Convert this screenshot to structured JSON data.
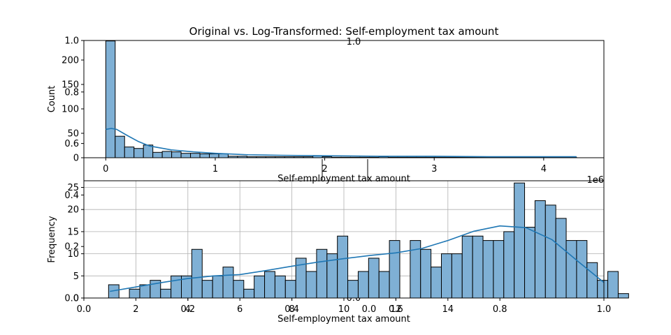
{
  "chart_data": [
    {
      "type": "bar",
      "title": "Original vs. Log-Transformed: Self-employment tax amount",
      "xlabel": "Self-employment tax amount",
      "ylabel": "Count",
      "x_offset_label": "1e6",
      "xlim": [
        -200000,
        4550000
      ],
      "ylim": [
        0,
        240
      ],
      "xticks": [
        0,
        1,
        2,
        3,
        4
      ],
      "yticks": [
        0,
        50,
        100,
        150,
        200
      ],
      "grid": false,
      "bin_start": 0,
      "bin_width": 86000,
      "counts": [
        239,
        44,
        22,
        19,
        26,
        11,
        13,
        12,
        9,
        9,
        8,
        8,
        8,
        3,
        3,
        2,
        2,
        2,
        2,
        2,
        2,
        2,
        4,
        2,
        1,
        1,
        1,
        1,
        1,
        2,
        1,
        1,
        1,
        1,
        1,
        1,
        1,
        1,
        1,
        1,
        1,
        1,
        1,
        1,
        1,
        1,
        1,
        1,
        1,
        1
      ],
      "kde": [
        [
          0,
          58
        ],
        [
          50000,
          60
        ],
        [
          100000,
          58
        ],
        [
          200000,
          45
        ],
        [
          300000,
          33
        ],
        [
          400000,
          24
        ],
        [
          600000,
          16
        ],
        [
          800000,
          12
        ],
        [
          1000000,
          9
        ],
        [
          1300000,
          6
        ],
        [
          1600000,
          5
        ],
        [
          2000000,
          4
        ],
        [
          2500000,
          3
        ],
        [
          3000000,
          3
        ],
        [
          3500000,
          2
        ],
        [
          4000000,
          2
        ],
        [
          4300000,
          2
        ]
      ],
      "bar_color": "#7fb0d5",
      "kde_color": "#1f77b4"
    },
    {
      "type": "bar",
      "xlabel": "Self-employment tax amount",
      "ylabel": "Frequency",
      "xlim": [
        0,
        20
      ],
      "ylim": [
        0,
        26.5
      ],
      "xticks": [
        2,
        4,
        6,
        8,
        10,
        12,
        14
      ],
      "yticks": [
        0,
        5,
        10,
        15,
        20,
        25
      ],
      "grid": true,
      "bin_start": 0.95,
      "bin_width": 0.4,
      "counts": [
        3,
        0,
        2,
        3,
        4,
        2,
        5,
        5,
        11,
        4,
        5,
        7,
        4,
        2,
        5,
        6,
        5,
        4,
        9,
        6,
        11,
        10,
        14,
        4,
        6,
        9,
        6,
        13,
        0,
        13,
        11,
        7,
        10,
        10,
        14,
        14,
        13,
        13,
        15,
        26,
        16,
        22,
        21,
        18,
        13,
        13,
        8,
        4,
        6,
        1
      ],
      "kde": [
        [
          1,
          1.5
        ],
        [
          2,
          2.5
        ],
        [
          3,
          3.5
        ],
        [
          4,
          4.4
        ],
        [
          5,
          5.0
        ],
        [
          6,
          5.3
        ],
        [
          7,
          6.2
        ],
        [
          8,
          7.2
        ],
        [
          9,
          8.1
        ],
        [
          10,
          8.9
        ],
        [
          11,
          9.6
        ],
        [
          12,
          10.2
        ],
        [
          13,
          11.2
        ],
        [
          14,
          13.0
        ],
        [
          15,
          15.1
        ],
        [
          16,
          16.3
        ],
        [
          17,
          15.9
        ],
        [
          18,
          13.2
        ],
        [
          19,
          8.3
        ],
        [
          20,
          3.5
        ]
      ],
      "bar_color": "#7fb0d5",
      "kde_color": "#1f77b4"
    }
  ],
  "ghost": {
    "left_labels": [
      "1.0",
      "0.8",
      "0.6",
      "0.4",
      "0.2",
      "0.0"
    ],
    "bottom_labels": [
      "0.0",
      "0.2",
      "0.4",
      "0.6",
      "0.8",
      "1.0"
    ],
    "center_top_label": "1.0",
    "center_bottom_label": "0.0"
  }
}
